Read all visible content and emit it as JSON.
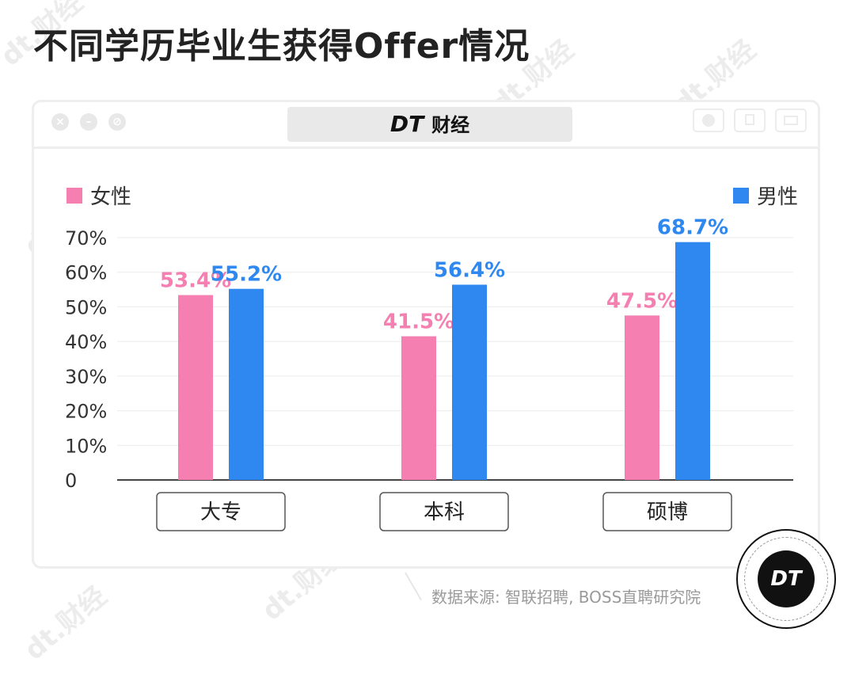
{
  "page": {
    "title": "不同学历毕业生获得Offer情况",
    "brand_dt": "DT",
    "brand_name": "财经",
    "source": "数据来源: 智联招聘, BOSS直聘研究院",
    "logo_text": "DT",
    "watermark_text": "dt.财经"
  },
  "chart_data": {
    "type": "bar",
    "categories": [
      "大专",
      "本科",
      "硕博"
    ],
    "series": [
      {
        "name": "女性",
        "values": [
          53.4,
          41.5,
          47.5
        ],
        "color": "#f47fb0"
      },
      {
        "name": "男性",
        "values": [
          55.2,
          56.4,
          68.7
        ],
        "color": "#2f88f0"
      }
    ],
    "value_labels": [
      [
        "53.4%",
        "41.5%",
        "47.5%"
      ],
      [
        "55.2%",
        "56.4%",
        "68.7%"
      ]
    ],
    "yticks": [
      "0",
      "10%",
      "20%",
      "30%",
      "40%",
      "50%",
      "60%",
      "70%"
    ],
    "ylim": [
      0,
      70
    ],
    "grid": true,
    "legend_placement": "top-left / top-right"
  }
}
